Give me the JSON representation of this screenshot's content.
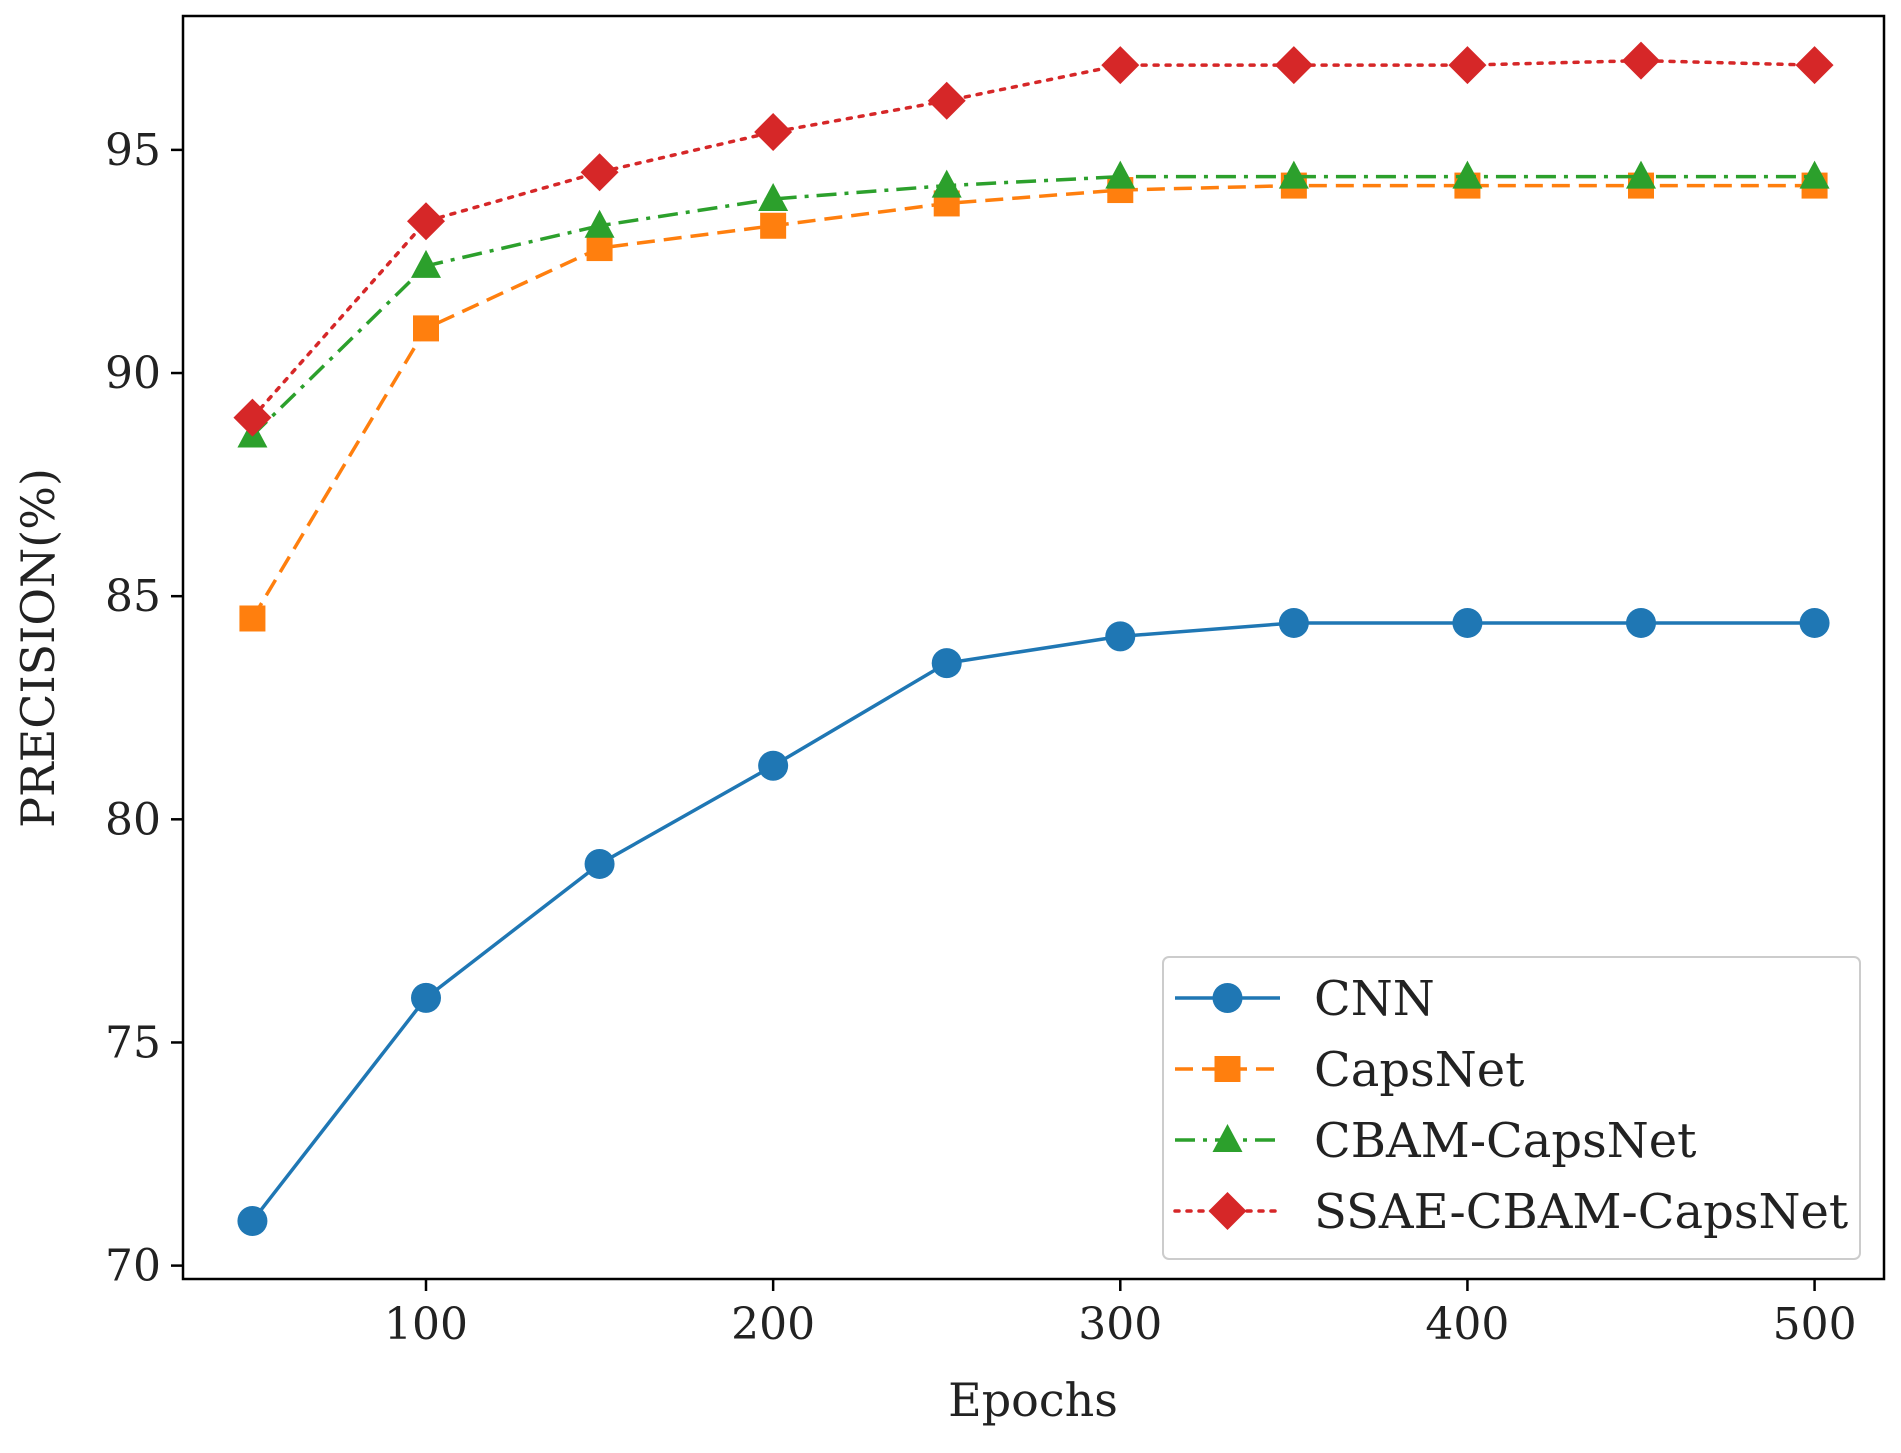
{
  "chart_data": {
    "type": "line",
    "title": "",
    "xlabel": "Epochs",
    "ylabel": "PRECISION(%)",
    "xlim": [
      30,
      520
    ],
    "ylim": [
      69.7,
      98.0
    ],
    "xticks": [
      100,
      200,
      300,
      400,
      500
    ],
    "yticks": [
      70,
      75,
      80,
      85,
      90,
      95
    ],
    "grid": false,
    "legend_position": "lower-right",
    "x": [
      50,
      100,
      150,
      200,
      250,
      300,
      350,
      400,
      450,
      500
    ],
    "series": [
      {
        "name": "CNN",
        "color": "#1f77b4",
        "linestyle": "solid",
        "marker": "circle",
        "values": [
          71.0,
          76.0,
          79.0,
          81.2,
          83.5,
          84.1,
          84.4,
          84.4,
          84.4,
          84.4
        ]
      },
      {
        "name": "CapsNet",
        "color": "#ff7f0e",
        "linestyle": "dashed",
        "marker": "square",
        "values": [
          84.5,
          91.0,
          92.8,
          93.3,
          93.8,
          94.1,
          94.2,
          94.2,
          94.2,
          94.2
        ]
      },
      {
        "name": "CBAM-CapsNet",
        "color": "#2ca02c",
        "linestyle": "dashdot",
        "marker": "triangle",
        "values": [
          88.6,
          92.4,
          93.3,
          93.9,
          94.2,
          94.4,
          94.4,
          94.4,
          94.4,
          94.4
        ]
      },
      {
        "name": "SSAE-CBAM-CapsNet",
        "color": "#d62728",
        "linestyle": "dotted",
        "marker": "diamond",
        "values": [
          89.0,
          93.4,
          94.5,
          95.4,
          96.1,
          96.9,
          96.9,
          96.9,
          97.0,
          96.9
        ]
      }
    ]
  }
}
